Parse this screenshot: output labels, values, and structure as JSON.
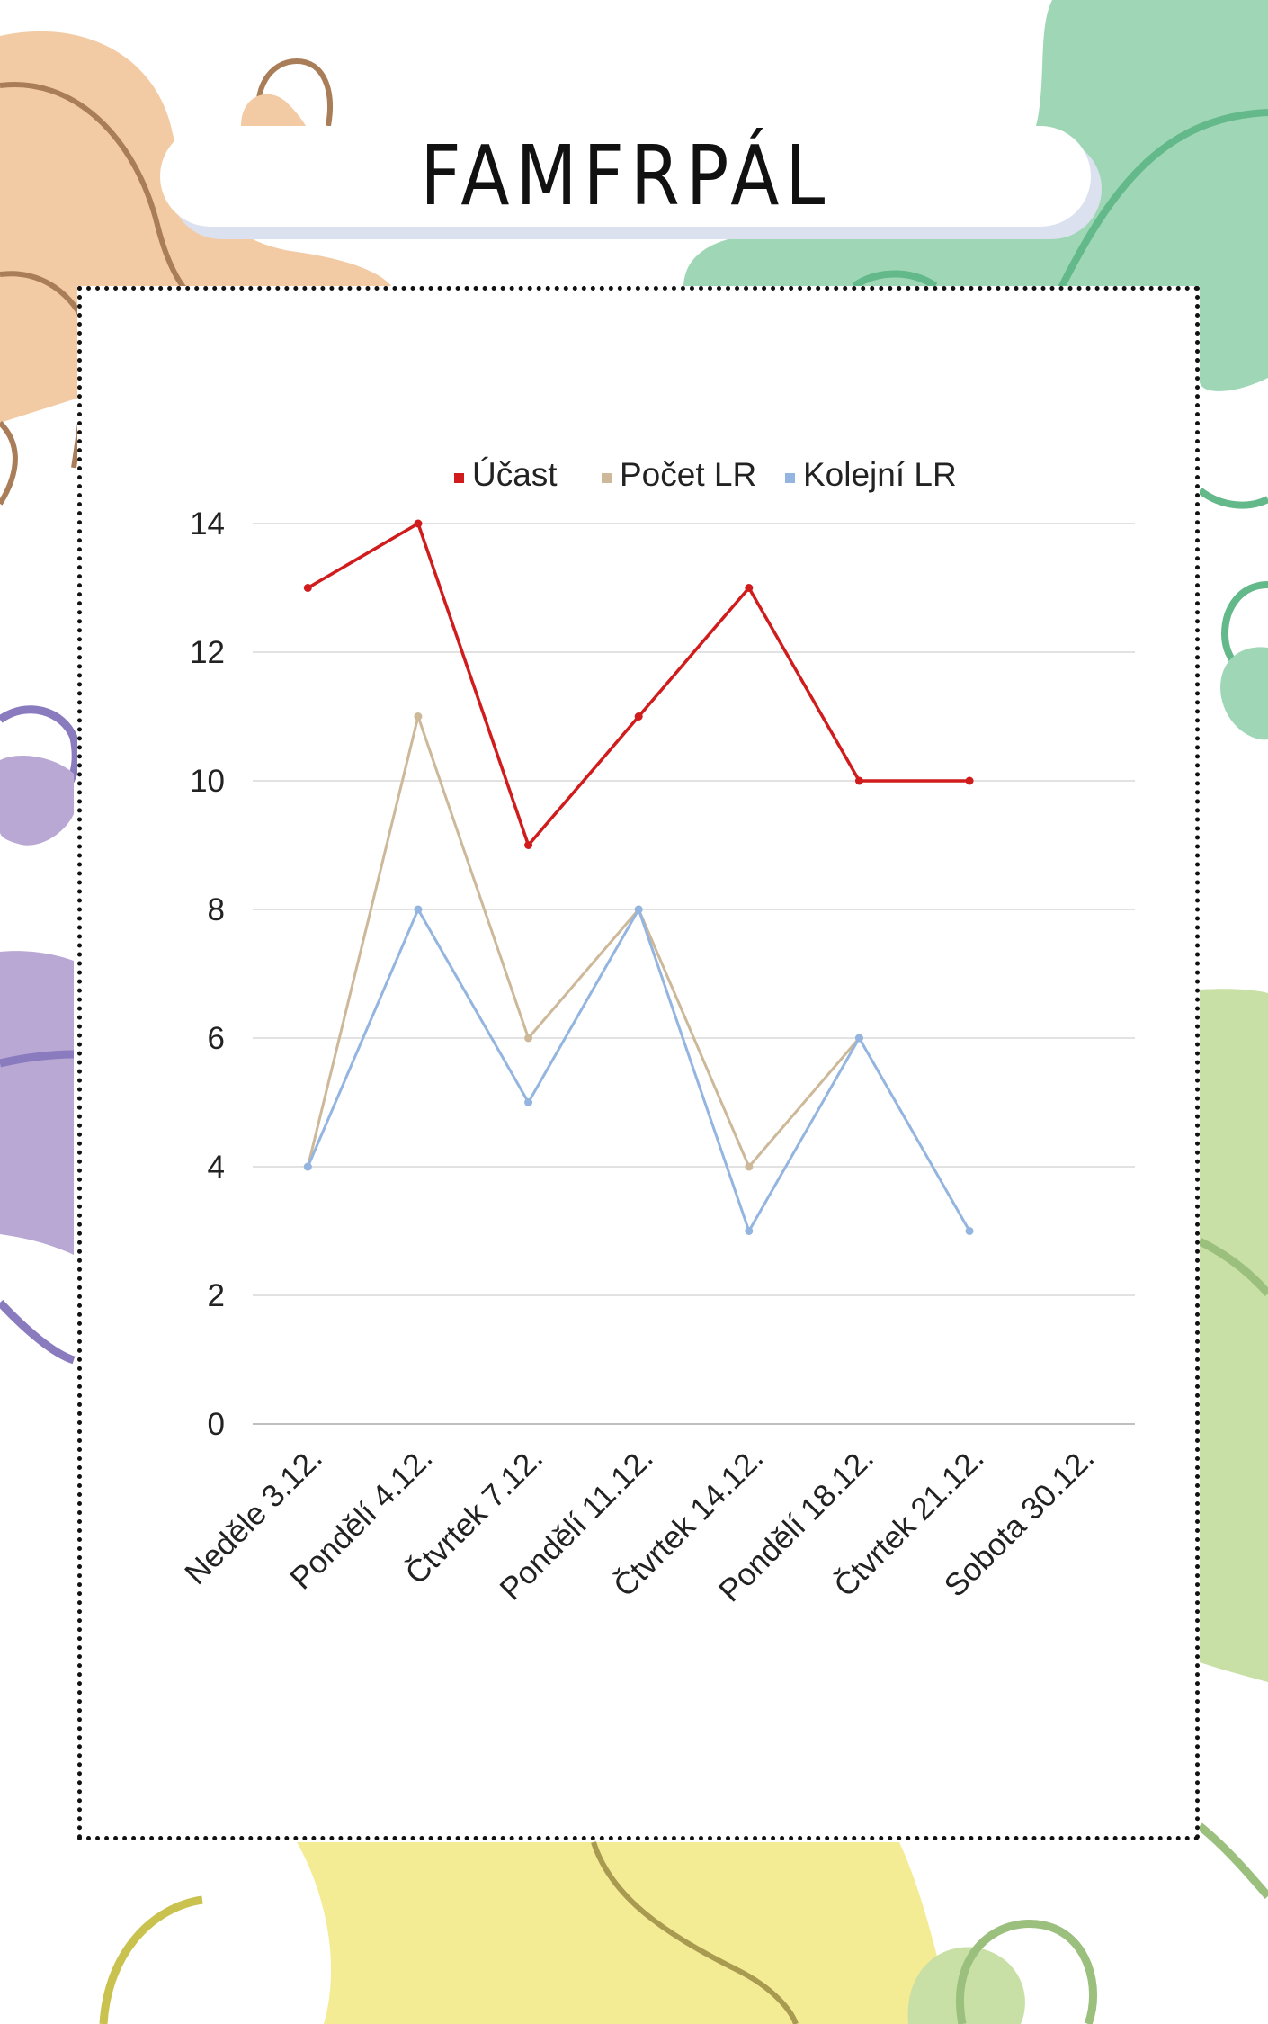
{
  "page": {
    "title": "FAMFRPÁL"
  },
  "colors": {
    "peach": "#f2cba4",
    "brown": "#a87d58",
    "mint": "#9fd7b6",
    "green": "#63b98a",
    "lavender": "#b9a8d3",
    "purple": "#8a7bbf",
    "lime": "#c8e0a5",
    "olive": "#9bbf7d",
    "yellow": "#f4ec94",
    "mustard": "#c9c24f",
    "gridline": "#d9d9d9",
    "axis": "#bfbfbf"
  },
  "chart_data": {
    "type": "line",
    "categories": [
      "Neděle 3.12.",
      "Pondělí 4.12.",
      "Čtvrtek 7.12.",
      "Pondělí 11.12.",
      "Čtvrtek 14.12.",
      "Pondělí 18.12.",
      "Čtvrtek 21.12.",
      "Sobota 30.12."
    ],
    "series": [
      {
        "name": "Účast",
        "color": "#d01c1c",
        "values": [
          13,
          14,
          9,
          11,
          13,
          10,
          10,
          null
        ]
      },
      {
        "name": "Počet LR",
        "color": "#cdb99a",
        "values": [
          4,
          11,
          6,
          8,
          4,
          6,
          null,
          null
        ]
      },
      {
        "name": "Kolejní LR",
        "color": "#93b5e0",
        "values": [
          4,
          8,
          5,
          8,
          3,
          6,
          3,
          null
        ]
      }
    ],
    "ylim": [
      0,
      14
    ],
    "yticks": [
      "0",
      "2",
      "4",
      "6",
      "8",
      "10",
      "12",
      "14"
    ],
    "grid": true,
    "legend": "top-center"
  }
}
